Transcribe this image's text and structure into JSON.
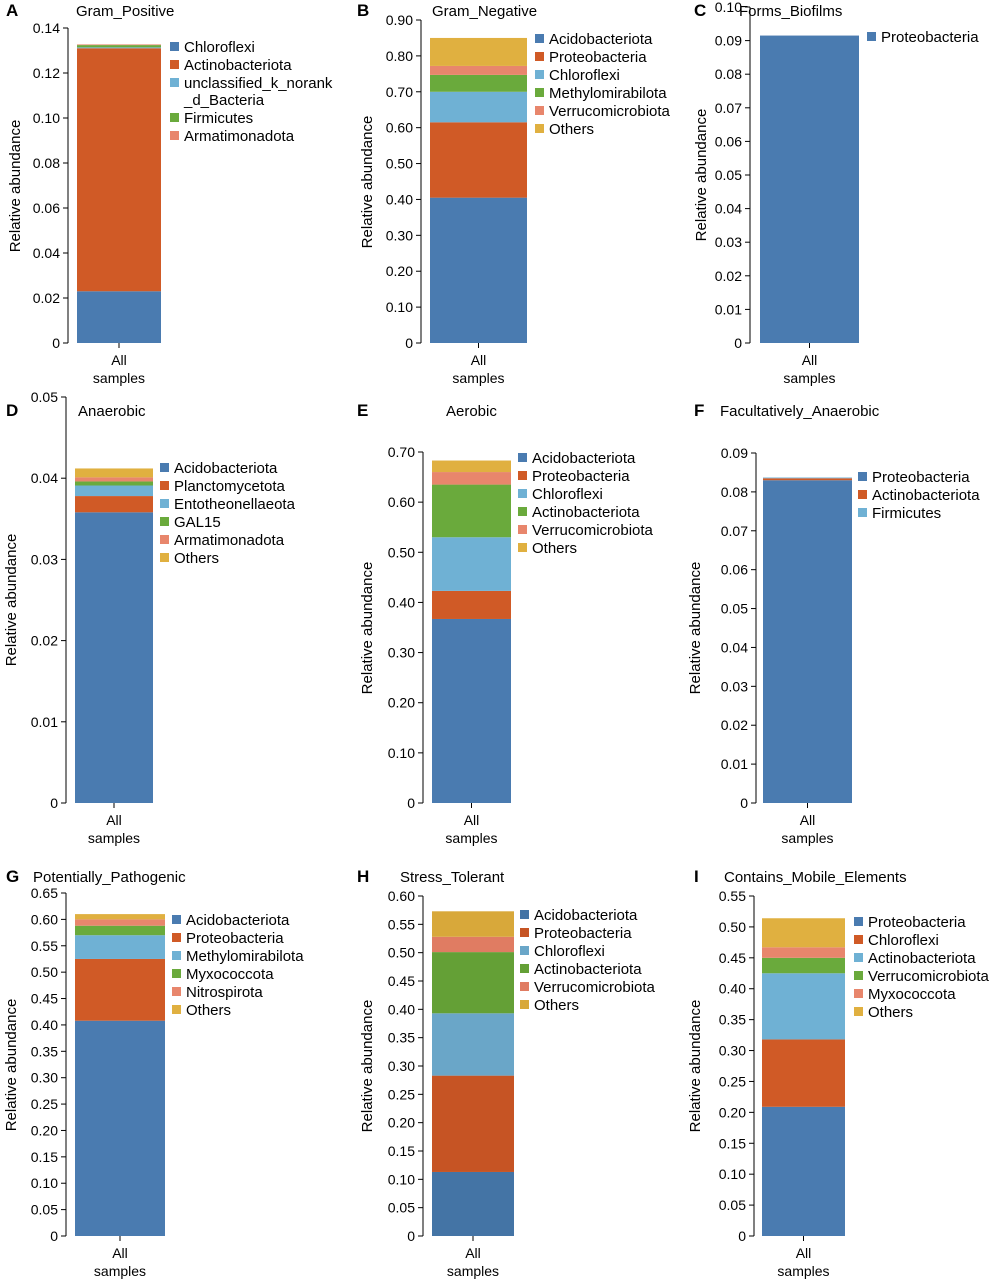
{
  "chart_data": [
    {
      "type": "bar",
      "stacked": true,
      "panel_letter": "A",
      "title": "Gram_Positive",
      "ylabel": "Relative abundance",
      "categories": [
        "All samples"
      ],
      "category_lines": [
        "All",
        "samples"
      ],
      "ylim": [
        0,
        0.14
      ],
      "yticks": [
        0,
        0.02,
        0.04,
        0.06,
        0.08,
        0.1,
        0.12,
        0.14
      ],
      "ytick_labels": [
        "0",
        "0.02",
        "0.04",
        "0.06",
        "0.08",
        "0.10",
        "0.12",
        "0.14"
      ],
      "legend_position": "right",
      "series": [
        {
          "name": "Chloroflexi",
          "legend_lines": [
            "Chloroflexi"
          ],
          "color": "#4a7bb0",
          "values": [
            0.023
          ]
        },
        {
          "name": "Actinobacteriota",
          "legend_lines": [
            "Actinobacteriota"
          ],
          "color": "#d05a26",
          "values": [
            0.108
          ]
        },
        {
          "name": "unclassified_k_norank_d_Bacteria",
          "legend_lines": [
            "unclassified_k_norank",
            "_d_Bacteria"
          ],
          "color": "#6fb1d4",
          "values": [
            0.0004
          ]
        },
        {
          "name": "Firmicutes",
          "legend_lines": [
            "Firmicutes"
          ],
          "color": "#6aaa3c",
          "values": [
            0.001
          ]
        },
        {
          "name": "Armatimonadota",
          "legend_lines": [
            "Armatimonadota"
          ],
          "color": "#e8866c",
          "values": [
            0.0003
          ]
        }
      ]
    },
    {
      "type": "bar",
      "stacked": true,
      "panel_letter": "B",
      "title": "Gram_Negative",
      "ylabel": "Relative abundance",
      "categories": [
        "All samples"
      ],
      "category_lines": [
        "All",
        "samples"
      ],
      "ylim": [
        0,
        0.9
      ],
      "yticks": [
        0,
        0.1,
        0.2,
        0.3,
        0.4,
        0.5,
        0.6,
        0.7,
        0.8,
        0.9
      ],
      "ytick_labels": [
        "0",
        "0.10",
        "0.20",
        "0.30",
        "0.40",
        "0.50",
        "0.60",
        "0.70",
        "0.80",
        "0.90"
      ],
      "legend_position": "right",
      "series": [
        {
          "name": "Acidobacteriota",
          "legend_lines": [
            "Acidobacteriota"
          ],
          "color": "#4a7bb0",
          "values": [
            0.405
          ]
        },
        {
          "name": "Proteobacteria",
          "legend_lines": [
            "Proteobacteria"
          ],
          "color": "#d05a26",
          "values": [
            0.21
          ]
        },
        {
          "name": "Chloroflexi",
          "legend_lines": [
            "Chloroflexi"
          ],
          "color": "#6fb1d4",
          "values": [
            0.085
          ]
        },
        {
          "name": "Methylomirabilota",
          "legend_lines": [
            "Methylomirabilota"
          ],
          "color": "#6aaa3c",
          "values": [
            0.047
          ]
        },
        {
          "name": "Verrucomicrobiota",
          "legend_lines": [
            "Verrucomicrobiota"
          ],
          "color": "#e8866c",
          "values": [
            0.025
          ]
        },
        {
          "name": "Others",
          "legend_lines": [
            "Others"
          ],
          "color": "#e0b040",
          "values": [
            0.078
          ]
        }
      ]
    },
    {
      "type": "bar",
      "stacked": true,
      "panel_letter": "C",
      "title": "Forms_Biofilms",
      "ylabel": "Relative abundance",
      "categories": [
        "All samples"
      ],
      "category_lines": [
        "All",
        "samples"
      ],
      "ylim": [
        0,
        0.1
      ],
      "yticks": [
        0,
        0.01,
        0.02,
        0.03,
        0.04,
        0.05,
        0.06,
        0.07,
        0.08,
        0.09,
        0.1
      ],
      "ytick_labels": [
        "0",
        "0.01",
        "0.02",
        "0.03",
        "0.04",
        "0.05",
        "0.06",
        "0.07",
        "0.08",
        "0.09",
        "0.10"
      ],
      "legend_position": "right",
      "series": [
        {
          "name": "Proteobacteria",
          "legend_lines": [
            "Proteobacteria"
          ],
          "color": "#4a7bb0",
          "values": [
            0.0915
          ]
        }
      ]
    },
    {
      "type": "bar",
      "stacked": true,
      "panel_letter": "D",
      "title": "Anaerobic",
      "ylabel": "Relative abundance",
      "categories": [
        "All samples"
      ],
      "category_lines": [
        "All",
        "samples"
      ],
      "ylim": [
        0,
        0.05
      ],
      "yticks": [
        0,
        0.01,
        0.02,
        0.03,
        0.04,
        0.05
      ],
      "ytick_labels": [
        "0",
        "0.01",
        "0.02",
        "0.03",
        "0.04",
        "0.05"
      ],
      "legend_position": "right",
      "series": [
        {
          "name": "Acidobacteriota",
          "legend_lines": [
            "Acidobacteriota"
          ],
          "color": "#4a7bb0",
          "values": [
            0.0358
          ]
        },
        {
          "name": "Planctomycetota",
          "legend_lines": [
            "Planctomycetota"
          ],
          "color": "#d05a26",
          "values": [
            0.002
          ]
        },
        {
          "name": "Entotheonellaeota",
          "legend_lines": [
            "Entotheonellaeota"
          ],
          "color": "#6fb1d4",
          "values": [
            0.0013
          ]
        },
        {
          "name": "GAL15",
          "legend_lines": [
            "GAL15"
          ],
          "color": "#6aaa3c",
          "values": [
            0.0005
          ]
        },
        {
          "name": "Armatimonadota",
          "legend_lines": [
            "Armatimonadota"
          ],
          "color": "#e8866c",
          "values": [
            0.0005
          ]
        },
        {
          "name": "Others",
          "legend_lines": [
            "Others"
          ],
          "color": "#e0b040",
          "values": [
            0.0011
          ]
        }
      ]
    },
    {
      "type": "bar",
      "stacked": true,
      "panel_letter": "E",
      "title": "Aerobic",
      "ylabel": "Relative abundance",
      "categories": [
        "All samples"
      ],
      "category_lines": [
        "All",
        "samples"
      ],
      "ylim": [
        0,
        0.7
      ],
      "yticks": [
        0,
        0.1,
        0.2,
        0.3,
        0.4,
        0.5,
        0.6,
        0.7
      ],
      "ytick_labels": [
        "0",
        "0.10",
        "0.20",
        "0.30",
        "0.40",
        "0.50",
        "0.60",
        "0.70"
      ],
      "legend_position": "right",
      "series": [
        {
          "name": "Acidobacteriota",
          "legend_lines": [
            "Acidobacteriota"
          ],
          "color": "#4a7bb0",
          "values": [
            0.367
          ]
        },
        {
          "name": "Proteobacteria",
          "legend_lines": [
            "Proteobacteria"
          ],
          "color": "#d05a26",
          "values": [
            0.056
          ]
        },
        {
          "name": "Chloroflexi",
          "legend_lines": [
            "Chloroflexi"
          ],
          "color": "#6fb1d4",
          "values": [
            0.107
          ]
        },
        {
          "name": "Actinobacteriota",
          "legend_lines": [
            "Actinobacteriota"
          ],
          "color": "#6aaa3c",
          "values": [
            0.105
          ]
        },
        {
          "name": "Verrucomicrobiota",
          "legend_lines": [
            "Verrucomicrobiota"
          ],
          "color": "#e8866c",
          "values": [
            0.025
          ]
        },
        {
          "name": "Others",
          "legend_lines": [
            "Others"
          ],
          "color": "#e0b040",
          "values": [
            0.023
          ]
        }
      ]
    },
    {
      "type": "bar",
      "stacked": true,
      "panel_letter": "F",
      "title": "Facultatively_Anaerobic",
      "ylabel": "Relative abundance",
      "categories": [
        "All samples"
      ],
      "category_lines": [
        "All",
        "samples"
      ],
      "ylim": [
        0,
        0.09
      ],
      "yticks": [
        0,
        0.01,
        0.02,
        0.03,
        0.04,
        0.05,
        0.06,
        0.07,
        0.08,
        0.09
      ],
      "ytick_labels": [
        "0",
        "0.01",
        "0.02",
        "0.03",
        "0.04",
        "0.05",
        "0.06",
        "0.07",
        "0.08",
        "0.09"
      ],
      "legend_position": "right",
      "series": [
        {
          "name": "Proteobacteria",
          "legend_lines": [
            "Proteobacteria"
          ],
          "color": "#4a7bb0",
          "values": [
            0.083
          ]
        },
        {
          "name": "Actinobacteriota",
          "legend_lines": [
            "Actinobacteriota"
          ],
          "color": "#d05a26",
          "values": [
            0.0005
          ]
        },
        {
          "name": "Firmicutes",
          "legend_lines": [
            "Firmicutes"
          ],
          "color": "#6fb1d4",
          "values": [
            0.0002
          ]
        }
      ]
    },
    {
      "type": "bar",
      "stacked": true,
      "panel_letter": "G",
      "title": "Potentially_Pathogenic",
      "ylabel": "Relative abundance",
      "categories": [
        "All samples"
      ],
      "category_lines": [
        "All",
        "samples"
      ],
      "ylim": [
        0,
        0.65
      ],
      "yticks": [
        0,
        0.05,
        0.1,
        0.15,
        0.2,
        0.25,
        0.3,
        0.35,
        0.4,
        0.45,
        0.5,
        0.55,
        0.6,
        0.65
      ],
      "ytick_labels": [
        "0",
        "0.05",
        "0.10",
        "0.15",
        "0.20",
        "0.25",
        "0.30",
        "0.35",
        "0.40",
        "0.45",
        "0.50",
        "0.55",
        "0.60",
        "0.65"
      ],
      "legend_position": "right",
      "series": [
        {
          "name": "Acidobacteriota",
          "legend_lines": [
            "Acidobacteriota"
          ],
          "color": "#4a7bb0",
          "values": [
            0.408
          ]
        },
        {
          "name": "Proteobacteria",
          "legend_lines": [
            "Proteobacteria"
          ],
          "color": "#d05a26",
          "values": [
            0.117
          ]
        },
        {
          "name": "Methylomirabilota",
          "legend_lines": [
            "Methylomirabilota"
          ],
          "color": "#6fb1d4",
          "values": [
            0.045
          ]
        },
        {
          "name": "Myxococcota",
          "legend_lines": [
            "Myxococcota"
          ],
          "color": "#6aaa3c",
          "values": [
            0.018
          ]
        },
        {
          "name": "Nitrospirota",
          "legend_lines": [
            "Nitrospirota"
          ],
          "color": "#e8866c",
          "values": [
            0.012
          ]
        },
        {
          "name": "Others",
          "legend_lines": [
            "Others"
          ],
          "color": "#e0b040",
          "values": [
            0.01
          ]
        }
      ]
    },
    {
      "type": "bar",
      "stacked": true,
      "panel_letter": "H",
      "title": "Stress_Tolerant",
      "ylabel": "Relative abundance",
      "categories": [
        "All samples"
      ],
      "category_lines": [
        "All",
        "samples"
      ],
      "ylim": [
        0,
        0.6
      ],
      "yticks": [
        0,
        0.05,
        0.1,
        0.15,
        0.2,
        0.25,
        0.3,
        0.35,
        0.4,
        0.45,
        0.5,
        0.55,
        0.6
      ],
      "ytick_labels": [
        "0",
        "0.05",
        "0.10",
        "0.15",
        "0.20",
        "0.25",
        "0.30",
        "0.35",
        "0.40",
        "0.45",
        "0.50",
        "0.55",
        "0.60"
      ],
      "legend_position": "right",
      "series": [
        {
          "name": "Acidobacteriota",
          "legend_lines": [
            "Acidobacteriota"
          ],
          "color": "#4474a5",
          "values": [
            0.113
          ]
        },
        {
          "name": "Proteobacteria",
          "legend_lines": [
            "Proteobacteria"
          ],
          "color": "#c65424",
          "values": [
            0.17
          ]
        },
        {
          "name": "Chloroflexi",
          "legend_lines": [
            "Chloroflexi"
          ],
          "color": "#6aa6c8",
          "values": [
            0.11
          ]
        },
        {
          "name": "Actinobacteriota",
          "legend_lines": [
            "Actinobacteriota"
          ],
          "color": "#64a036",
          "values": [
            0.108
          ]
        },
        {
          "name": "Verrucomicrobiota",
          "legend_lines": [
            "Verrucomicrobiota"
          ],
          "color": "#e07c62",
          "values": [
            0.027
          ]
        },
        {
          "name": "Others",
          "legend_lines": [
            "Others"
          ],
          "color": "#d8a83a",
          "values": [
            0.045
          ]
        }
      ]
    },
    {
      "type": "bar",
      "stacked": true,
      "panel_letter": "I",
      "title": "Contains_Mobile_Elements",
      "ylabel": "Relative abundance",
      "categories": [
        "All samples"
      ],
      "category_lines": [
        "All",
        "samples"
      ],
      "ylim": [
        0,
        0.55
      ],
      "yticks": [
        0,
        0.05,
        0.1,
        0.15,
        0.2,
        0.25,
        0.3,
        0.35,
        0.4,
        0.45,
        0.5,
        0.55
      ],
      "ytick_labels": [
        "0",
        "0.05",
        "0.10",
        "0.15",
        "0.20",
        "0.25",
        "0.30",
        "0.35",
        "0.40",
        "0.45",
        "0.50",
        "0.55"
      ],
      "legend_position": "right",
      "series": [
        {
          "name": "Proteobacteria",
          "legend_lines": [
            "Proteobacteria"
          ],
          "color": "#4a7bb0",
          "values": [
            0.209
          ]
        },
        {
          "name": "Chloroflexi",
          "legend_lines": [
            "Chloroflexi"
          ],
          "color": "#d05a26",
          "values": [
            0.109
          ]
        },
        {
          "name": "Actinobacteriota",
          "legend_lines": [
            "Actinobacteriota"
          ],
          "color": "#6fb1d4",
          "values": [
            0.107
          ]
        },
        {
          "name": "Verrucomicrobiota",
          "legend_lines": [
            "Verrucomicrobiota"
          ],
          "color": "#6aaa3c",
          "values": [
            0.025
          ]
        },
        {
          "name": "Myxococcota",
          "legend_lines": [
            "Myxococcota"
          ],
          "color": "#e8866c",
          "values": [
            0.017
          ]
        },
        {
          "name": "Others",
          "legend_lines": [
            "Others"
          ],
          "color": "#e0b040",
          "values": [
            0.047
          ]
        }
      ]
    }
  ]
}
